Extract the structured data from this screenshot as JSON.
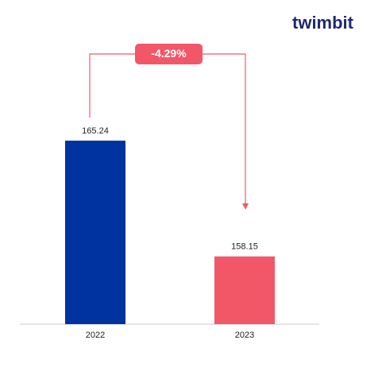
{
  "chart_data": {
    "type": "bar",
    "logo": "twimbit",
    "categories": [
      "2022",
      "2023"
    ],
    "values": [
      165.24,
      158.15
    ],
    "colors": [
      "#0033a0",
      "#f25767"
    ],
    "annotation": "-4.29%",
    "ylim": [
      154,
      168
    ]
  }
}
